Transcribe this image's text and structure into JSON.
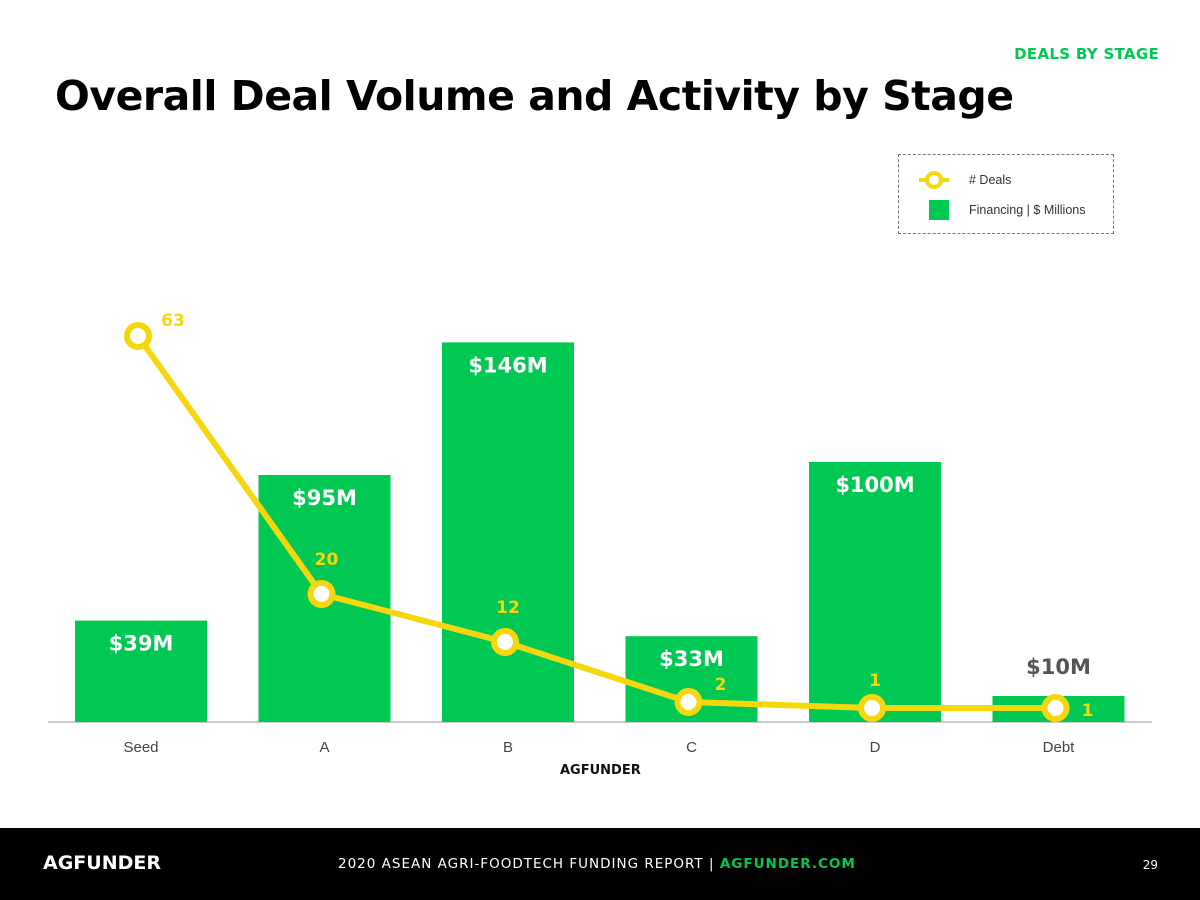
{
  "header": {
    "section_tag": "DEALS BY STAGE",
    "title": "Overall Deal Volume and Activity by Stage"
  },
  "legend": {
    "deals_label": "# Deals",
    "financing_label": "Financing | $ Millions"
  },
  "colors": {
    "bar": "#00c853",
    "line": "#f6d70d",
    "axis": "#cccccc",
    "footer_bg": "#000000",
    "accent": "#00c853"
  },
  "chart_data": {
    "type": "bar",
    "categories": [
      "Seed",
      "A",
      "B",
      "C",
      "D",
      "Debt"
    ],
    "series": [
      {
        "name": "Financing | $ Millions",
        "type": "bar",
        "values": [
          39,
          95,
          146,
          33,
          100,
          10
        ],
        "labels": [
          "$39M",
          "$95M",
          "$146M",
          "$33M",
          "$100M",
          "$10M"
        ]
      },
      {
        "name": "# Deals",
        "type": "line",
        "values": [
          63,
          20,
          12,
          2,
          1,
          1
        ],
        "labels": [
          "63",
          "20",
          "12",
          "2",
          "1",
          "1"
        ]
      }
    ],
    "title": "Overall Deal Volume and Activity by Stage",
    "xlabel": "",
    "ylabel": "",
    "grid": false,
    "legend_position": "top-right"
  },
  "brand": {
    "mid_logo": "AGFUNDER"
  },
  "footer": {
    "logo": "AGFUNDER",
    "report_text": "2020 ASEAN AGRI-FOODTECH FUNDING REPORT",
    "separator": "|",
    "link_text": "AGFUNDER.COM",
    "page_number": "29"
  }
}
